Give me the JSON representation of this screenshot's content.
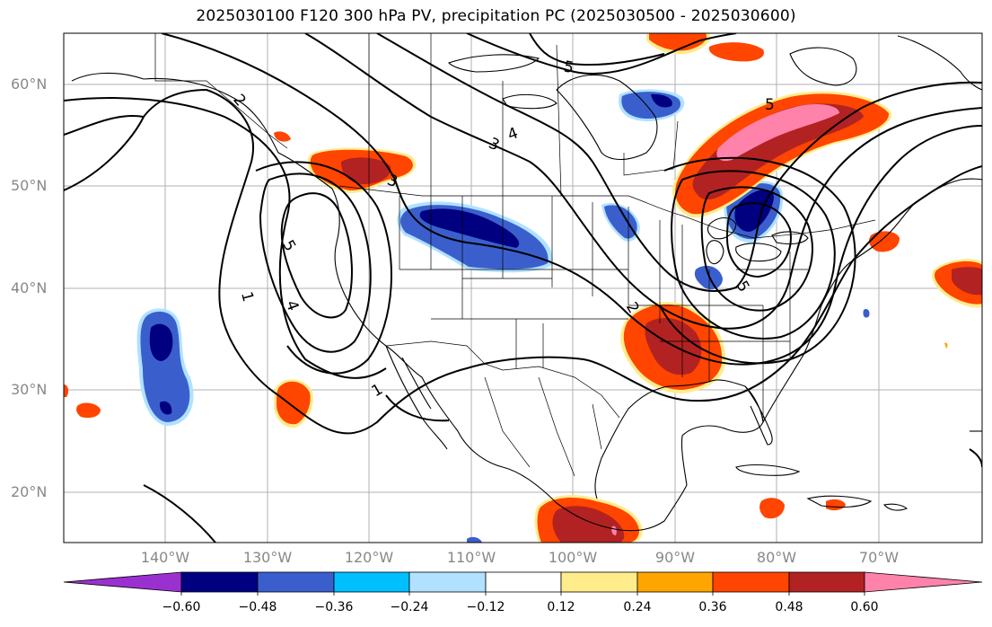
{
  "title": "2025030100 F120 300 hPa PV, precipitation PC (2025030500 - 2025030600)",
  "lat_labels": [
    "60°N",
    "50°N",
    "40°N",
    "30°N",
    "20°N"
  ],
  "lon_labels": [
    "140°W",
    "130°W",
    "120°W",
    "110°W",
    "100°W",
    "90°W",
    "80°W",
    "70°W"
  ],
  "pv_contour_labels": [
    "1",
    "2",
    "3",
    "4",
    "5"
  ],
  "colorbar": {
    "ticks": [
      "−0.60",
      "−0.48",
      "−0.36",
      "−0.24",
      "−0.12",
      "0.12",
      "0.24",
      "0.36",
      "0.48",
      "0.60"
    ],
    "colors": [
      "#9b30d0",
      "#000080",
      "#3a5fcd",
      "#00bfff",
      "#b0e2ff",
      "#ffffff",
      "#ffec8b",
      "#ffa500",
      "#ff4500",
      "#b22222",
      "#ff82ab"
    ]
  }
}
